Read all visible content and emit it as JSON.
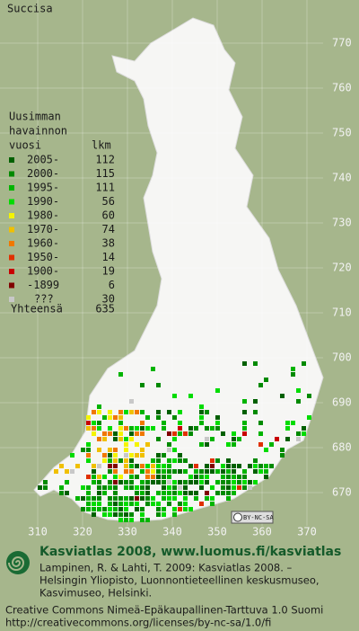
{
  "title": "Succisa",
  "legend": {
    "heading": [
      "Uusimman",
      "havainnon",
      "vuosi"
    ],
    "count_heading": "lkm",
    "entries": [
      {
        "label": "2005-",
        "count": 112,
        "color": "#006000"
      },
      {
        "label": "2000-",
        "count": 115,
        "color": "#008a00"
      },
      {
        "label": "1995-",
        "count": 111,
        "color": "#00b400"
      },
      {
        "label": "1990-",
        "count": 56,
        "color": "#00dc00"
      },
      {
        "label": "1980-",
        "count": 60,
        "color": "#f4f400"
      },
      {
        "label": "1970-",
        "count": 74,
        "color": "#f0c000"
      },
      {
        "label": "1960-",
        "count": 38,
        "color": "#f07800"
      },
      {
        "label": "1950-",
        "count": 14,
        "color": "#e03000"
      },
      {
        "label": "1900-",
        "count": 19,
        "color": "#c80000"
      },
      {
        "label": "-1899",
        "count": 6,
        "color": "#800000"
      },
      {
        "label": "???",
        "count": 30,
        "color": "#c8c8c8"
      }
    ],
    "total": {
      "label": "Yhteensä",
      "count": 635
    }
  },
  "grid": {
    "northing": [
      770,
      760,
      750,
      740,
      730,
      720,
      710,
      700,
      690,
      680,
      670
    ],
    "easting": [
      310,
      320,
      330,
      340,
      350,
      360,
      370
    ]
  },
  "license_badge": "BY-NC-SA",
  "footer": {
    "brand": "Kasviatlas 2008, www.luomus.fi/kasviatlas",
    "citation": [
      "Lampinen, R. & Lahti, T. 2009: Kasviatlas 2008. –",
      "Helsingin Yliopisto, Luonnontieteellinen keskusmuseo,",
      "Kasvimuseo, Helsinki."
    ],
    "license": [
      "Creative Commons Nimeä-Epäkaupallinen-Tarttuva 1.0 Suomi",
      "http://creativecommons.org/licenses/by-nc-sa/1.0/fi"
    ]
  }
}
